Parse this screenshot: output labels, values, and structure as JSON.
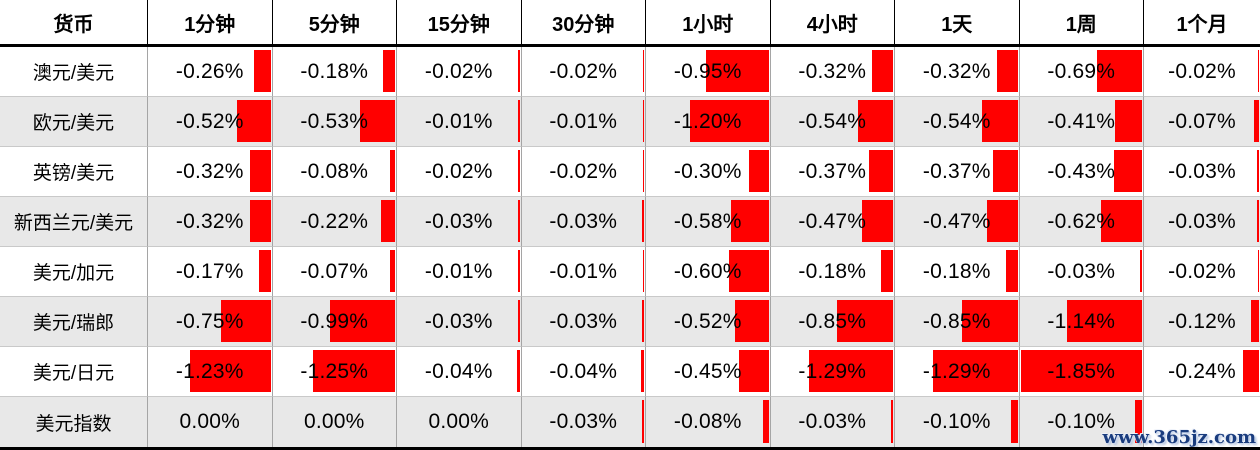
{
  "table": {
    "columns": [
      "货币",
      "1分钟",
      "5分钟",
      "15分钟",
      "30分钟",
      "1小时",
      "4小时",
      "1天",
      "1周",
      "1个月"
    ],
    "rows": [
      {
        "currency": "澳元/美元",
        "values": [
          "-0.26%",
          "-0.18%",
          "-0.02%",
          "-0.02%",
          "-0.95%",
          "-0.32%",
          "-0.32%",
          "-0.69%",
          "-0.02%"
        ]
      },
      {
        "currency": "欧元/美元",
        "values": [
          "-0.52%",
          "-0.53%",
          "-0.01%",
          "-0.01%",
          "-1.20%",
          "-0.54%",
          "-0.54%",
          "-0.41%",
          "-0.07%"
        ]
      },
      {
        "currency": "英镑/美元",
        "values": [
          "-0.32%",
          "-0.08%",
          "-0.02%",
          "-0.02%",
          "-0.30%",
          "-0.37%",
          "-0.37%",
          "-0.43%",
          "-0.03%"
        ]
      },
      {
        "currency": "新西兰元/美元",
        "values": [
          "-0.32%",
          "-0.22%",
          "-0.03%",
          "-0.03%",
          "-0.58%",
          "-0.47%",
          "-0.47%",
          "-0.62%",
          "-0.03%"
        ]
      },
      {
        "currency": "美元/加元",
        "values": [
          "-0.17%",
          "-0.07%",
          "-0.01%",
          "-0.01%",
          "-0.60%",
          "-0.18%",
          "-0.18%",
          "-0.03%",
          "-0.02%"
        ]
      },
      {
        "currency": "美元/瑞郎",
        "values": [
          "-0.75%",
          "-0.99%",
          "-0.03%",
          "-0.03%",
          "-0.52%",
          "-0.85%",
          "-0.85%",
          "-1.14%",
          "-0.12%"
        ]
      },
      {
        "currency": "美元/日元",
        "values": [
          "-1.23%",
          "-1.25%",
          "-0.04%",
          "-0.04%",
          "-0.45%",
          "-1.29%",
          "-1.29%",
          "-1.85%",
          "-0.24%"
        ]
      },
      {
        "currency": "美元指数",
        "values": [
          "0.00%",
          "0.00%",
          "0.00%",
          "-0.03%",
          "-0.08%",
          "-0.03%",
          "-0.10%",
          "-0.10%",
          ""
        ]
      }
    ],
    "bar_scale_max_abs_percent": 1.85,
    "colors": {
      "bar": "#ff0000",
      "row_alt_bg": "#e8e8e8",
      "grid_vertical": "#a5a5a5",
      "grid_horizontal": "#c9c9c9",
      "header_border": "#000000",
      "text": "#000000",
      "watermark": "#1a3c7e"
    }
  },
  "watermark": {
    "text": "www.365jz.com"
  },
  "chart_data": {
    "type": "table",
    "title": "",
    "columns": [
      "货币",
      "1分钟",
      "5分钟",
      "15分钟",
      "30分钟",
      "1小时",
      "4小时",
      "1天",
      "1周",
      "1个月"
    ],
    "units": "percent",
    "rows": [
      {
        "currency": "澳元/美元",
        "values_percent": [
          -0.26,
          -0.18,
          -0.02,
          -0.02,
          -0.95,
          -0.32,
          -0.32,
          -0.69,
          -0.02
        ]
      },
      {
        "currency": "欧元/美元",
        "values_percent": [
          -0.52,
          -0.53,
          -0.01,
          -0.01,
          -1.2,
          -0.54,
          -0.54,
          -0.41,
          -0.07
        ]
      },
      {
        "currency": "英镑/美元",
        "values_percent": [
          -0.32,
          -0.08,
          -0.02,
          -0.02,
          -0.3,
          -0.37,
          -0.37,
          -0.43,
          -0.03
        ]
      },
      {
        "currency": "新西兰元/美元",
        "values_percent": [
          -0.32,
          -0.22,
          -0.03,
          -0.03,
          -0.58,
          -0.47,
          -0.47,
          -0.62,
          -0.03
        ]
      },
      {
        "currency": "美元/加元",
        "values_percent": [
          -0.17,
          -0.07,
          -0.01,
          -0.01,
          -0.6,
          -0.18,
          -0.18,
          -0.03,
          -0.02
        ]
      },
      {
        "currency": "美元/瑞郎",
        "values_percent": [
          -0.75,
          -0.99,
          -0.03,
          -0.03,
          -0.52,
          -0.85,
          -0.85,
          -1.14,
          -0.12
        ]
      },
      {
        "currency": "美元/日元",
        "values_percent": [
          -1.23,
          -1.25,
          -0.04,
          -0.04,
          -0.45,
          -1.29,
          -1.29,
          -1.85,
          -0.24
        ]
      },
      {
        "currency": "美元指数",
        "values_percent": [
          0.0,
          0.0,
          0.0,
          -0.03,
          -0.08,
          -0.03,
          -0.1,
          -0.1,
          null
        ]
      }
    ],
    "cell_bars": {
      "color": "#ff0000",
      "anchor": "right-edge-of-cell",
      "direction": "extends-left-for-negative",
      "length_scaled_to_max_abs_percent": 1.85
    },
    "layout": {
      "striped_rows": true,
      "grid": true,
      "legend": "none"
    },
    "annotations": [
      "www.365jz.com"
    ]
  }
}
